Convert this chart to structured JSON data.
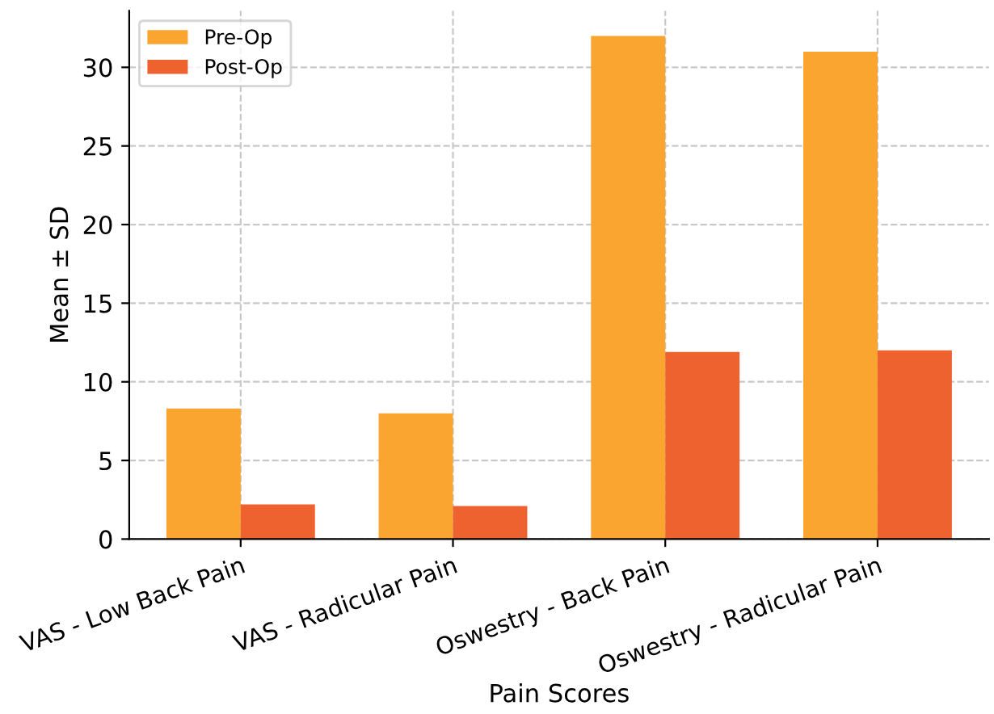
{
  "chart_data": {
    "type": "bar",
    "xlabel": "Pain Scores",
    "ylabel": "Mean ± SD",
    "categories": [
      "VAS - Low Back Pain",
      "VAS - Radicular Pain",
      "Oswestry - Back Pain",
      "Oswestry - Radicular Pain"
    ],
    "series": [
      {
        "name": "Pre-Op",
        "color": "#faa530",
        "values": [
          8.3,
          8.0,
          32.0,
          31.0
        ]
      },
      {
        "name": "Post-Op",
        "color": "#ee6230",
        "values": [
          2.2,
          2.1,
          11.9,
          12.0
        ]
      }
    ],
    "ylim": [
      0,
      33.6
    ],
    "yticks": [
      0,
      5,
      10,
      15,
      20,
      25,
      30
    ],
    "grid": true,
    "legend": "top left"
  }
}
